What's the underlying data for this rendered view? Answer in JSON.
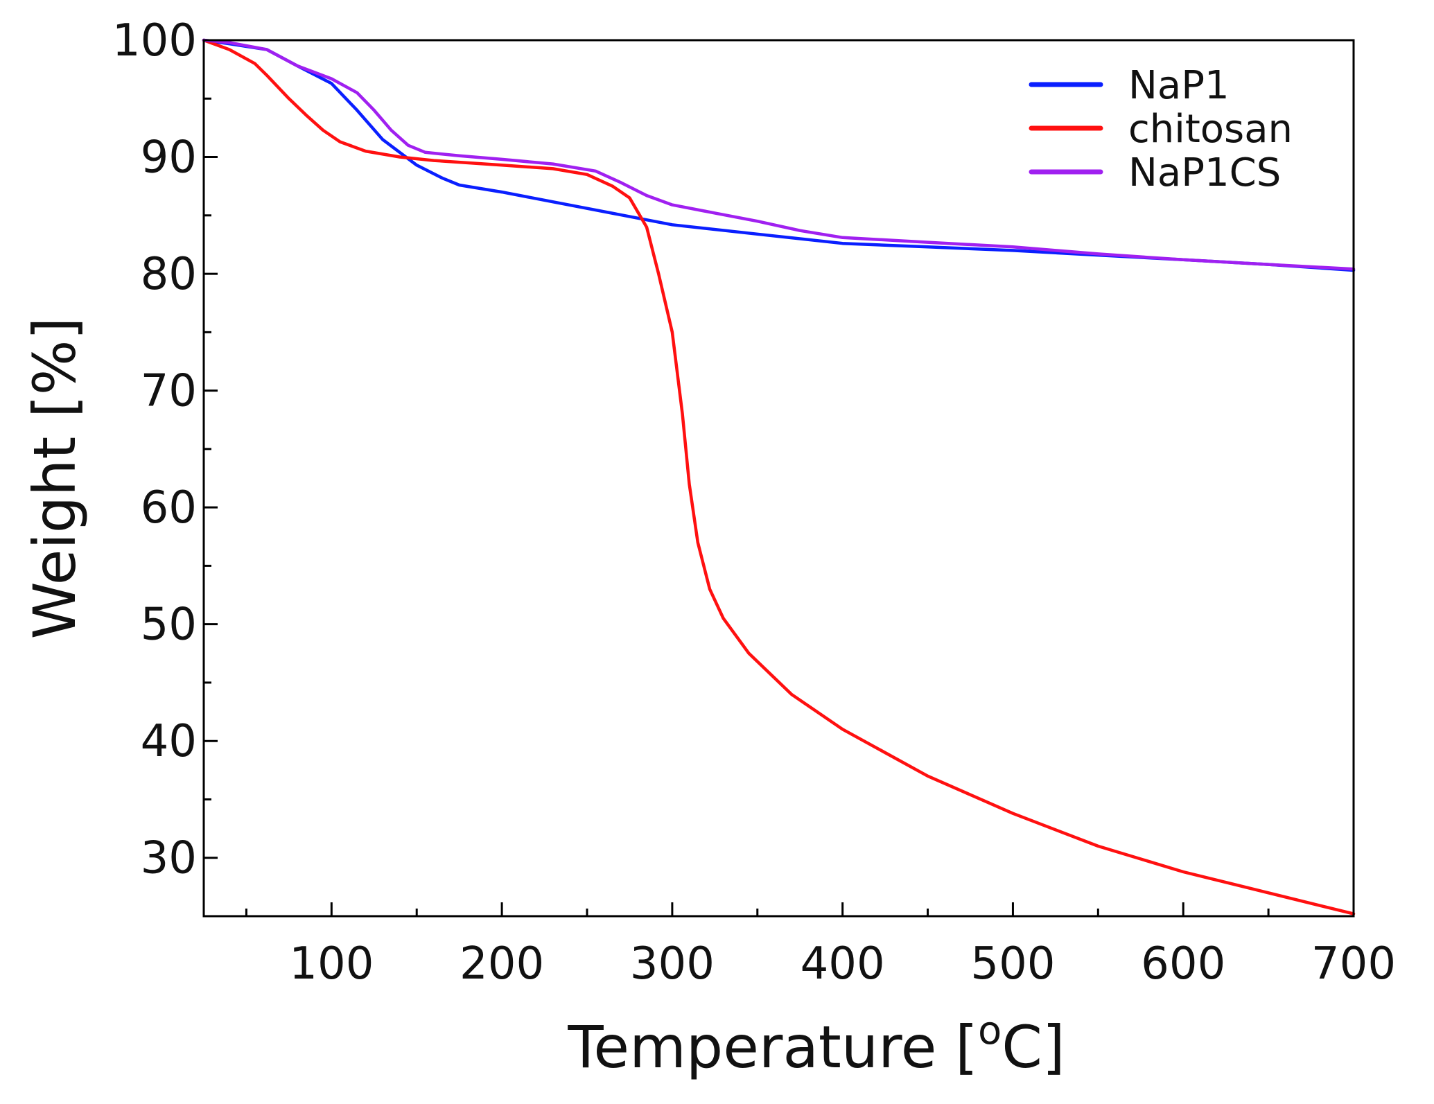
{
  "chart_data": {
    "type": "line",
    "title": "",
    "xlabel": "Temperature [",
    "xlabel_sup": "o",
    "xlabel_end": "C]",
    "ylabel": "Weight [%]",
    "xlim": [
      25,
      700
    ],
    "ylim": [
      25,
      100
    ],
    "x_ticks": [
      100,
      200,
      300,
      400,
      500,
      600,
      700
    ],
    "y_ticks": [
      30,
      40,
      50,
      60,
      70,
      80,
      90,
      100
    ],
    "x_minor_ticks": [
      50,
      150,
      250,
      350,
      450,
      550,
      650
    ],
    "y_minor_ticks": [
      35,
      45,
      55,
      65,
      75,
      85,
      95
    ],
    "legend_position": "top-right",
    "series": [
      {
        "name": "NaP1",
        "color": "#0a1fff",
        "points": [
          [
            25,
            100
          ],
          [
            40,
            99.7
          ],
          [
            62,
            99.2
          ],
          [
            80,
            97.8
          ],
          [
            100,
            96.3
          ],
          [
            115,
            94
          ],
          [
            130,
            91.5
          ],
          [
            150,
            89.3
          ],
          [
            165,
            88.2
          ],
          [
            175,
            87.6
          ],
          [
            200,
            87
          ],
          [
            250,
            85.6
          ],
          [
            300,
            84.2
          ],
          [
            350,
            83.4
          ],
          [
            400,
            82.6
          ],
          [
            450,
            82.3
          ],
          [
            500,
            82
          ],
          [
            550,
            81.6
          ],
          [
            600,
            81.2
          ],
          [
            650,
            80.8
          ],
          [
            700,
            80.3
          ]
        ]
      },
      {
        "name": "chitosan",
        "color": "#ff1010",
        "points": [
          [
            25,
            100
          ],
          [
            40,
            99.2
          ],
          [
            55,
            98
          ],
          [
            62,
            97
          ],
          [
            75,
            95
          ],
          [
            85,
            93.6
          ],
          [
            95,
            92.3
          ],
          [
            105,
            91.3
          ],
          [
            120,
            90.5
          ],
          [
            140,
            90
          ],
          [
            160,
            89.7
          ],
          [
            200,
            89.3
          ],
          [
            230,
            89
          ],
          [
            250,
            88.5
          ],
          [
            265,
            87.5
          ],
          [
            275,
            86.5
          ],
          [
            285,
            84
          ],
          [
            292,
            80
          ],
          [
            300,
            75
          ],
          [
            306,
            68
          ],
          [
            310,
            62
          ],
          [
            315,
            57
          ],
          [
            322,
            53
          ],
          [
            330,
            50.5
          ],
          [
            345,
            47.5
          ],
          [
            370,
            44
          ],
          [
            400,
            41
          ],
          [
            450,
            37
          ],
          [
            500,
            33.8
          ],
          [
            550,
            31
          ],
          [
            600,
            28.8
          ],
          [
            650,
            27
          ],
          [
            700,
            25.2
          ]
        ]
      },
      {
        "name": "NaP1CS",
        "color": "#a020f0",
        "points": [
          [
            25,
            100
          ],
          [
            40,
            99.8
          ],
          [
            62,
            99.2
          ],
          [
            80,
            97.8
          ],
          [
            100,
            96.7
          ],
          [
            115,
            95.5
          ],
          [
            125,
            94
          ],
          [
            135,
            92.3
          ],
          [
            145,
            91
          ],
          [
            155,
            90.4
          ],
          [
            175,
            90.1
          ],
          [
            200,
            89.8
          ],
          [
            230,
            89.4
          ],
          [
            255,
            88.8
          ],
          [
            270,
            87.8
          ],
          [
            285,
            86.7
          ],
          [
            300,
            85.9
          ],
          [
            325,
            85.2
          ],
          [
            350,
            84.5
          ],
          [
            375,
            83.7
          ],
          [
            400,
            83.1
          ],
          [
            450,
            82.7
          ],
          [
            500,
            82.3
          ],
          [
            550,
            81.7
          ],
          [
            600,
            81.2
          ],
          [
            650,
            80.8
          ],
          [
            700,
            80.4
          ]
        ]
      }
    ]
  }
}
